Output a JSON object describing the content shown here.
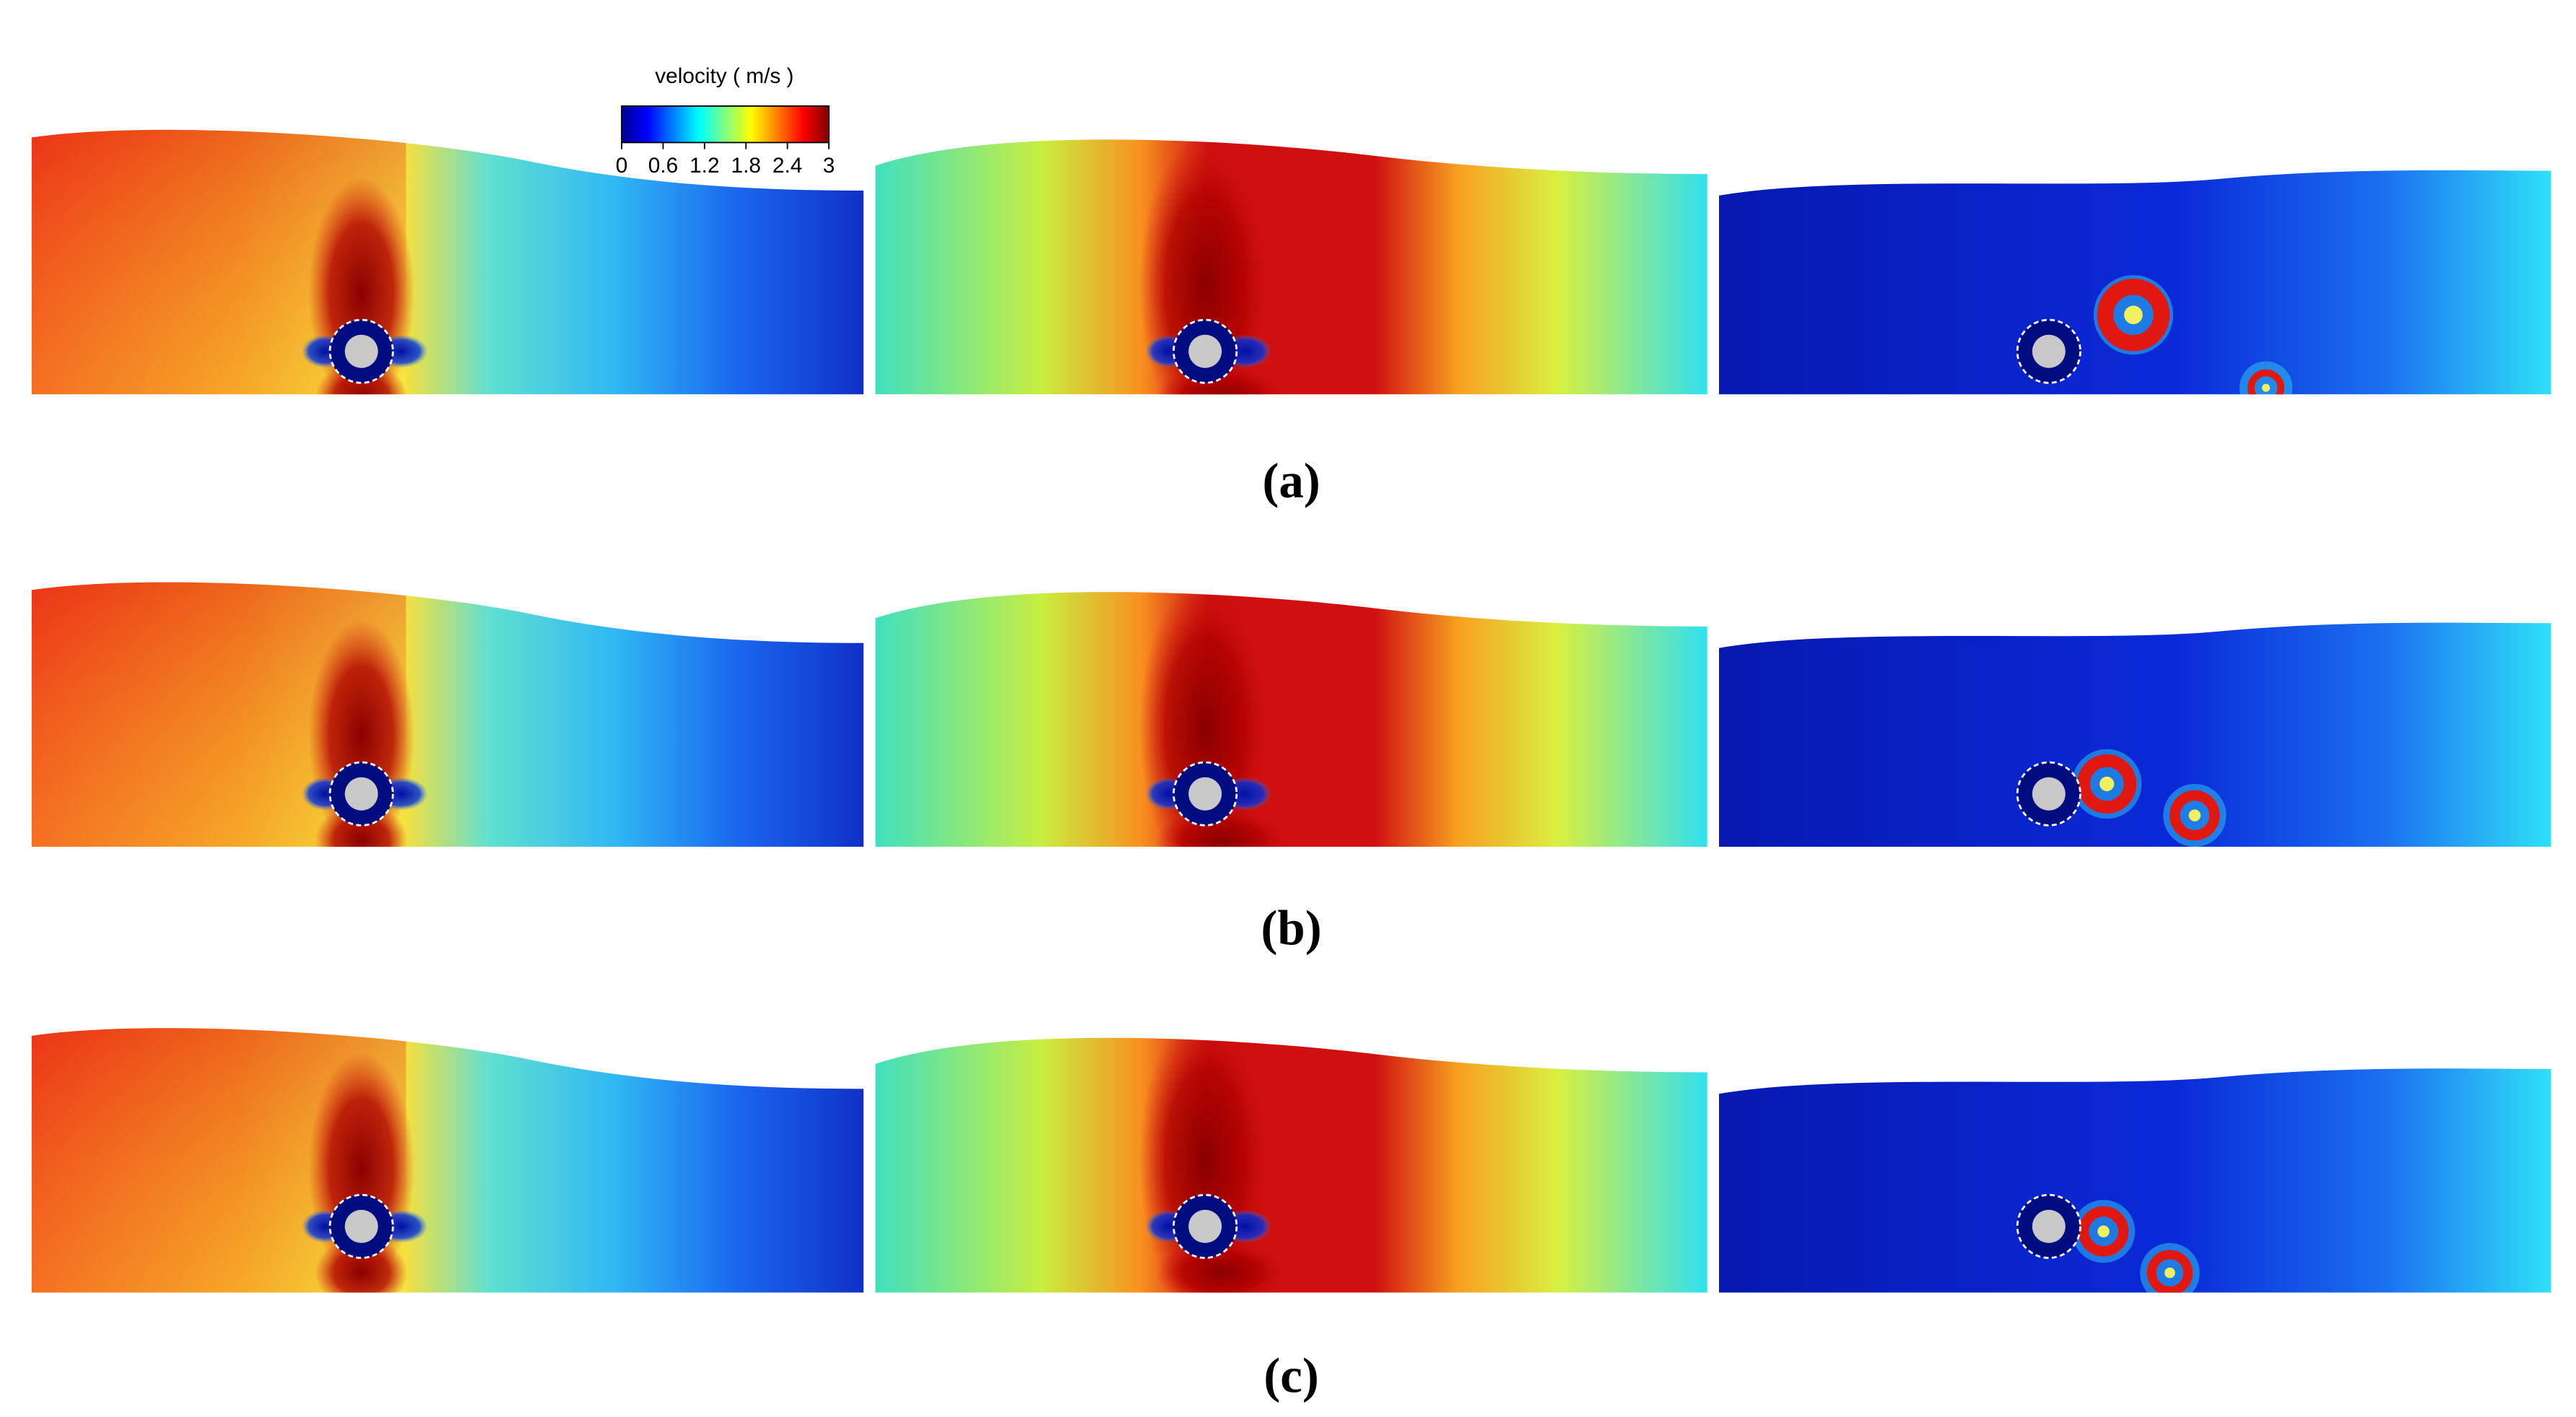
{
  "colorbar": {
    "title": "velocity ( m/s )",
    "lim": [
      0,
      3
    ],
    "ticks": [
      0,
      0.6,
      1.2,
      1.8,
      2.4,
      3
    ]
  },
  "panels": [
    {
      "label": "(a)"
    },
    {
      "label": "(b)"
    },
    {
      "label": "(c)"
    }
  ]
}
